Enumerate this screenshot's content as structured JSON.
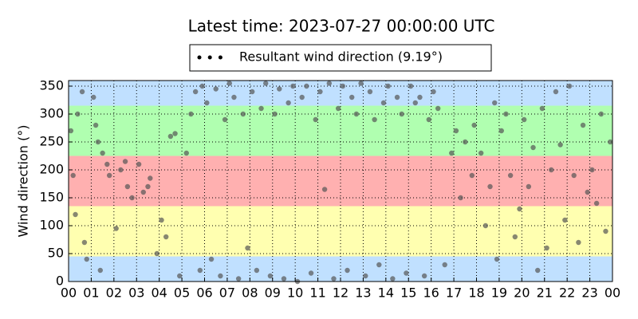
{
  "chart_data": {
    "type": "scatter",
    "title": "Latest time: 2023-07-27 00:00:00 UTC",
    "y_label": "Wind direction (°)",
    "xlim": [
      0,
      24
    ],
    "xticks": [
      {
        "value": 0,
        "label": "00"
      },
      {
        "value": 1,
        "label": "01"
      },
      {
        "value": 2,
        "label": "02"
      },
      {
        "value": 3,
        "label": "03"
      },
      {
        "value": 4,
        "label": "04"
      },
      {
        "value": 5,
        "label": "05"
      },
      {
        "value": 6,
        "label": "06"
      },
      {
        "value": 7,
        "label": "07"
      },
      {
        "value": 8,
        "label": "08"
      },
      {
        "value": 9,
        "label": "09"
      },
      {
        "value": 10,
        "label": "10"
      },
      {
        "value": 11,
        "label": "11"
      },
      {
        "value": 12,
        "label": "12"
      },
      {
        "value": 13,
        "label": "13"
      },
      {
        "value": 14,
        "label": "14"
      },
      {
        "value": 15,
        "label": "15"
      },
      {
        "value": 16,
        "label": "16"
      },
      {
        "value": 17,
        "label": "17"
      },
      {
        "value": 18,
        "label": "18"
      },
      {
        "value": 19,
        "label": "19"
      },
      {
        "value": 20,
        "label": "20"
      },
      {
        "value": 21,
        "label": "21"
      },
      {
        "value": 22,
        "label": "22"
      },
      {
        "value": 23,
        "label": "23"
      },
      {
        "value": 24,
        "label": "00"
      }
    ],
    "ylim": [
      0,
      360
    ],
    "yticks": [
      0,
      50,
      100,
      150,
      200,
      250,
      300,
      350
    ],
    "grid": true,
    "bands": [
      {
        "from": 0,
        "to": 45,
        "color": "#c0e0ff"
      },
      {
        "from": 45,
        "to": 135,
        "color": "#ffffb0"
      },
      {
        "from": 135,
        "to": 225,
        "color": "#ffb0b0"
      },
      {
        "from": 225,
        "to": 315,
        "color": "#b0ffb0"
      },
      {
        "from": 315,
        "to": 360,
        "color": "#c0e0ff"
      }
    ],
    "legend": "top",
    "series": [
      {
        "name": "Resultant wind direction (9.19°)",
        "color": "#555555",
        "x": [
          0.1,
          0.2,
          0.3,
          0.4,
          0.6,
          0.7,
          0.8,
          1.1,
          1.2,
          1.3,
          1.4,
          1.5,
          1.7,
          1.8,
          2.1,
          2.3,
          2.5,
          2.6,
          2.8,
          3.1,
          3.3,
          3.5,
          3.6,
          3.9,
          4.1,
          4.3,
          4.5,
          4.7,
          4.9,
          5.2,
          5.4,
          5.6,
          5.8,
          5.9,
          6.1,
          6.3,
          6.5,
          6.7,
          6.9,
          7.1,
          7.3,
          7.5,
          7.7,
          7.9,
          8.1,
          8.3,
          8.5,
          8.7,
          8.9,
          9.1,
          9.3,
          9.5,
          9.7,
          9.9,
          10.1,
          10.3,
          10.5,
          10.7,
          10.9,
          11.1,
          11.3,
          11.5,
          11.7,
          11.9,
          12.1,
          12.3,
          12.5,
          12.7,
          12.9,
          13.1,
          13.3,
          13.5,
          13.7,
          13.9,
          14.1,
          14.3,
          14.5,
          14.7,
          14.9,
          15.1,
          15.3,
          15.5,
          15.7,
          15.9,
          16.1,
          16.3,
          16.6,
          16.9,
          17.1,
          17.3,
          17.5,
          17.8,
          17.9,
          18.2,
          18.4,
          18.6,
          18.8,
          18.9,
          19.1,
          19.3,
          19.5,
          19.7,
          19.9,
          20.1,
          20.3,
          20.5,
          20.7,
          20.9,
          21.1,
          21.3,
          21.5,
          21.7,
          21.9,
          22.1,
          22.3,
          22.5,
          22.7,
          22.9,
          23.1,
          23.3,
          23.5,
          23.7,
          23.9
        ],
        "values": [
          270,
          190,
          120,
          300,
          340,
          70,
          40,
          330,
          280,
          250,
          20,
          230,
          210,
          190,
          95,
          200,
          215,
          170,
          150,
          210,
          160,
          170,
          185,
          50,
          110,
          80,
          260,
          265,
          10,
          230,
          300,
          340,
          20,
          350,
          320,
          40,
          345,
          10,
          290,
          355,
          330,
          5,
          300,
          60,
          340,
          20,
          310,
          355,
          10,
          300,
          345,
          5,
          320,
          350,
          0,
          330,
          350,
          15,
          290,
          340,
          165,
          355,
          5,
          310,
          350,
          20,
          330,
          300,
          355,
          10,
          340,
          290,
          30,
          320,
          350,
          5,
          330,
          300,
          15,
          350,
          320,
          330,
          10,
          290,
          340,
          310,
          30,
          230,
          270,
          150,
          250,
          190,
          280,
          230,
          100,
          170,
          320,
          40,
          270,
          300,
          190,
          80,
          130,
          290,
          170,
          240,
          20,
          310,
          60,
          200,
          340,
          245,
          110,
          350,
          190,
          70,
          280,
          160,
          200,
          140,
          300,
          90,
          250
        ]
      }
    ]
  }
}
